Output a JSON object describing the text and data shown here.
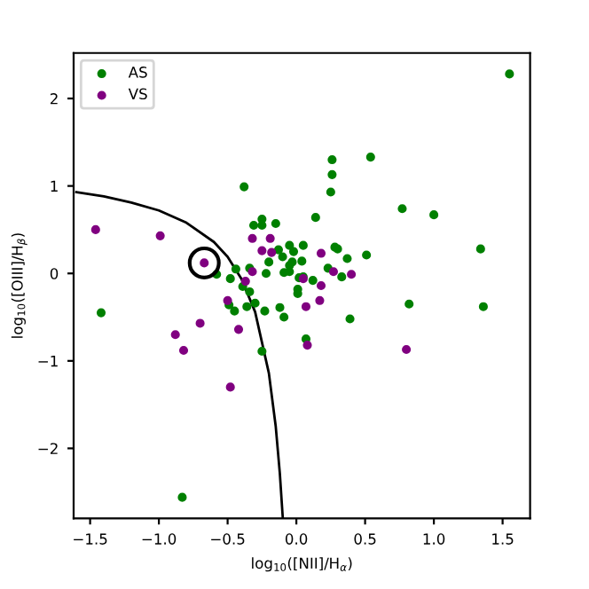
{
  "chart_data": {
    "type": "scatter",
    "xlabel": "log$_{10}$([NII]/H$_{α}$)",
    "ylabel": "log$_{10}$([OIII]/H$_{β}$)",
    "xlim": [
      -1.62,
      1.7
    ],
    "ylim": [
      -2.8,
      2.52
    ],
    "xticks": [
      {
        "value": -1.5,
        "label": "−1.5"
      },
      {
        "value": -1.0,
        "label": "−1.0"
      },
      {
        "value": -0.5,
        "label": "−0.5"
      },
      {
        "value": 0,
        "label": "0.0"
      },
      0.5,
      {
        "value": 1,
        "label": "1.0"
      },
      1.5
    ],
    "yticks": [
      {
        "value": -2,
        "label": "−2"
      },
      {
        "value": -1,
        "label": "−1"
      },
      0,
      1,
      2
    ],
    "legend": "top left",
    "grid": false,
    "marker": "circle",
    "series": [
      {
        "name": "AS",
        "color": "#008000",
        "x": [
          -0.38,
          -0.25,
          -0.25,
          -0.31,
          -0.15,
          -0.58,
          -0.44,
          1.55,
          0.26,
          0.54,
          0.26,
          0.25,
          0.77,
          1.0,
          0.14,
          1.34,
          0.51,
          0.37,
          0.28,
          0.3,
          -0.05,
          0.05,
          -0.02,
          -0.1,
          0.04,
          -0.03,
          -0.05,
          -0.09,
          -0.05,
          -0.13,
          -0.2,
          0.23,
          0.33,
          0.12,
          0.02,
          0.05,
          0.01,
          -1.42,
          -0.49,
          -0.45,
          -0.36,
          -0.3,
          -0.23,
          -0.25,
          -0.83,
          -0.48,
          -0.39,
          -0.34,
          -0.34,
          -0.12,
          -0.09,
          -0.22,
          0.01,
          0.82,
          1.36,
          0.39,
          0.07
        ],
        "values": [
          0.99,
          0.62,
          0.55,
          0.55,
          0.57,
          -0.01,
          0.05,
          2.28,
          1.3,
          1.33,
          1.13,
          0.93,
          0.74,
          0.67,
          0.64,
          0.28,
          0.21,
          0.17,
          0.3,
          0.28,
          0.32,
          0.32,
          0.25,
          0.19,
          0.14,
          0.13,
          0.09,
          0.01,
          0.02,
          0.27,
          0.13,
          0.06,
          -0.04,
          -0.08,
          -0.05,
          -0.04,
          -0.18,
          -0.45,
          -0.36,
          -0.43,
          -0.38,
          -0.34,
          -0.43,
          -0.89,
          -2.56,
          -0.06,
          -0.15,
          -0.21,
          0.06,
          -0.39,
          -0.5,
          0.0,
          -0.23,
          -0.35,
          -0.38,
          -0.52,
          -0.75
        ]
      },
      {
        "name": "VS",
        "color": "#800080",
        "x": [
          -1.46,
          -0.99,
          -0.67,
          -0.32,
          -0.19,
          -0.25,
          -0.18,
          -0.32,
          0.18,
          0.27,
          0.4,
          0.05,
          0.18,
          -0.88,
          -0.82,
          -0.7,
          -0.5,
          -0.42,
          -0.48,
          -0.37,
          0.07,
          0.17,
          0.08,
          0.8
        ],
        "values": [
          0.5,
          0.43,
          0.12,
          0.4,
          0.4,
          0.26,
          0.24,
          0.02,
          0.23,
          0.02,
          -0.01,
          -0.06,
          -0.14,
          -0.7,
          -0.88,
          -0.57,
          -0.31,
          -0.64,
          -1.3,
          -0.09,
          -0.38,
          -0.31,
          -0.82,
          -0.87
        ]
      },
      {
        "type": "line",
        "color": "#000000",
        "marker": "none",
        "line_style": "solid",
        "x": [
          -1.6,
          -1.4,
          -1.2,
          -1.0,
          -0.8,
          -0.6,
          -0.5,
          -0.4,
          -0.3,
          -0.2,
          -0.15,
          -0.12,
          -0.099
        ],
        "values": [
          0.93,
          0.88,
          0.81,
          0.72,
          0.58,
          0.36,
          0.19,
          -0.06,
          -0.44,
          -1.14,
          -1.75,
          -2.29,
          -2.79
        ]
      },
      {
        "type": "scatter",
        "color": "#000000",
        "marker": "circle",
        "x": [
          -0.67
        ],
        "values": [
          0.12
        ]
      }
    ]
  }
}
